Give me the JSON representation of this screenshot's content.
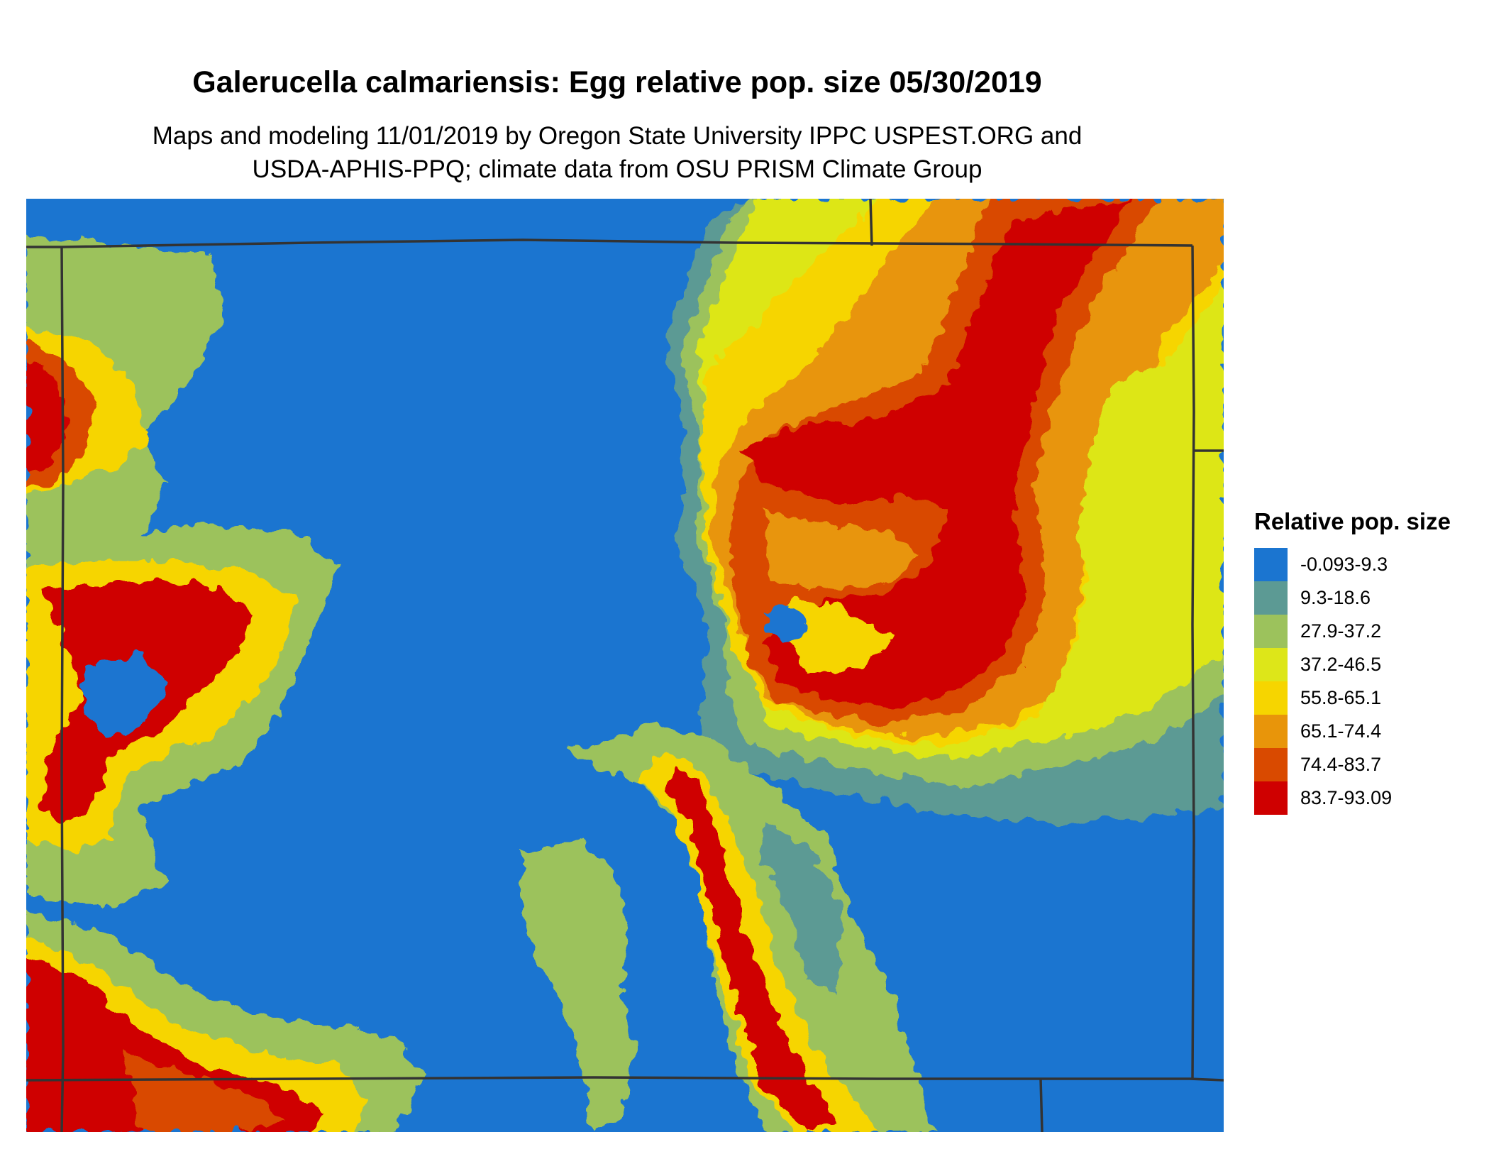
{
  "title": "Galerucella calmariensis: Egg relative pop. size 05/30/2019",
  "subtitle_line1": "Maps and modeling 11/01/2019 by Oregon State University IPPC USPEST.ORG and",
  "subtitle_line2": "USDA-APHIS-PPQ; climate data from OSU PRISM Climate Group",
  "legend": {
    "title": "Relative pop. size",
    "items": [
      {
        "label": "-0.093-9.3",
        "color": "#1b75d0"
      },
      {
        "label": "9.3-18.6",
        "color": "#5c9a94"
      },
      {
        "label": "27.9-37.2",
        "color": "#9cc25c"
      },
      {
        "label": "37.2-46.5",
        "color": "#dde619"
      },
      {
        "label": "55.8-65.1",
        "color": "#f6d500"
      },
      {
        "label": "65.1-74.4",
        "color": "#e8950a"
      },
      {
        "label": "74.4-83.7",
        "color": "#d94a00"
      },
      {
        "label": "83.7-93.09",
        "color": "#cf0000"
      }
    ]
  },
  "map": {
    "type": "raster-choropleth",
    "border_color": "#333333"
  }
}
